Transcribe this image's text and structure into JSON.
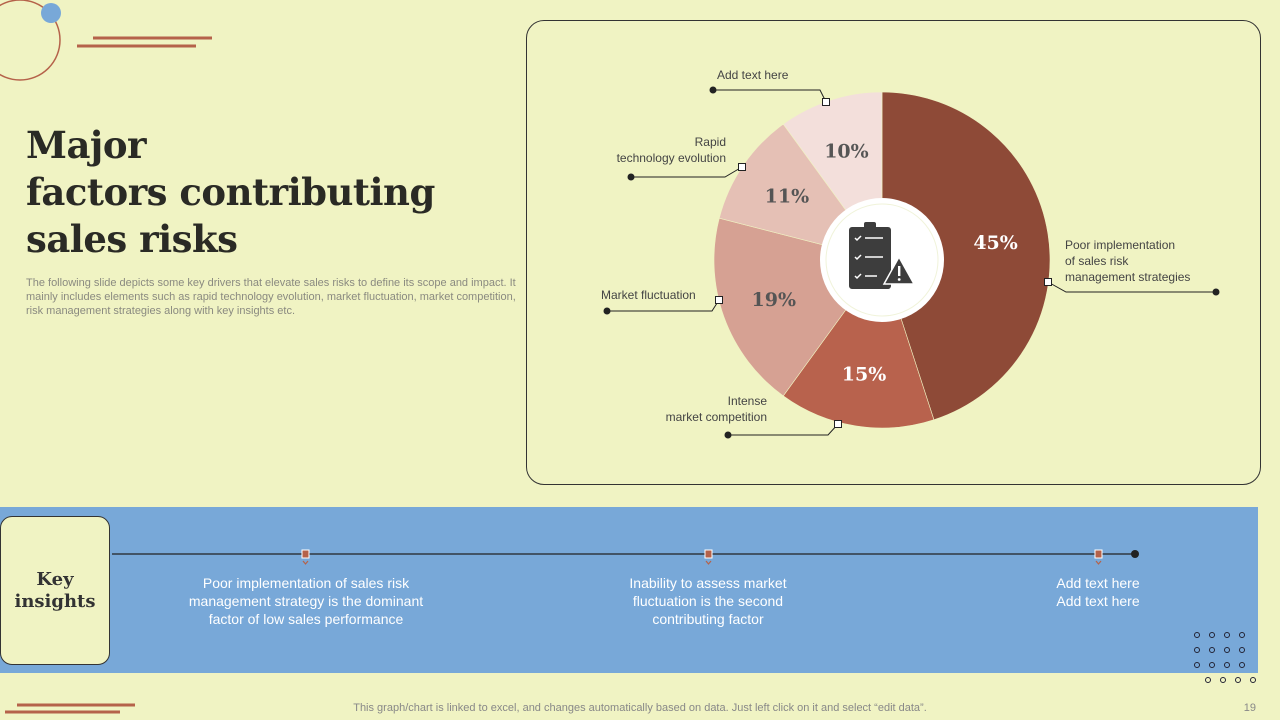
{
  "title_lines": [
    "Major",
    "factors contributing",
    "sales risks"
  ],
  "description": "The following slide depicts some key drivers that elevate sales risks to define its scope and impact. It mainly includes elements such as rapid technology evolution, market fluctuation, market competition, risk management strategies along with key insights etc.",
  "chart_data": {
    "type": "pie",
    "donut": true,
    "center_icon": "clipboard-warning-icon",
    "slices": [
      {
        "label": "Poor implementation of sales risk management strategies",
        "value": 45,
        "display": "45%",
        "color": "#8E4A37"
      },
      {
        "label": "Intense market competition",
        "value": 15,
        "display": "15%",
        "color": "#B8624D"
      },
      {
        "label": "Market fluctuation",
        "value": 19,
        "display": "19%",
        "color": "#D6A193"
      },
      {
        "label": "Rapid technology evolution",
        "value": 11,
        "display": "11%",
        "color": "#E5C0B5"
      },
      {
        "label": "Add text here",
        "value": 10,
        "display": "10%",
        "color": "#F3DFDB"
      }
    ]
  },
  "labels": {
    "s0": [
      "Poor implementation",
      "of sales risk",
      "management  strategies"
    ],
    "s1": [
      "Intense",
      "market competition"
    ],
    "s2": [
      "Market fluctuation"
    ],
    "s3": [
      "Rapid",
      "technology  evolution"
    ],
    "s4": [
      "Add text here"
    ]
  },
  "insights": {
    "heading_lines": [
      "Key",
      "insights"
    ],
    "items": [
      [
        "Poor implementation of sales risk",
        "management strategy is the dominant",
        "factor of low sales performance"
      ],
      [
        "Inability  to assess market",
        "fluctuation is the second",
        "contributing factor"
      ],
      [
        "Add text here",
        "Add text here"
      ]
    ]
  },
  "footer": "This graph/chart is linked to excel,  and changes automatically based on data. Just left click on it and select “edit data”.",
  "page_number": "19",
  "colors": {
    "background": "#F0F3C3",
    "band": "#78A8D8",
    "accent": "#B5624A"
  }
}
